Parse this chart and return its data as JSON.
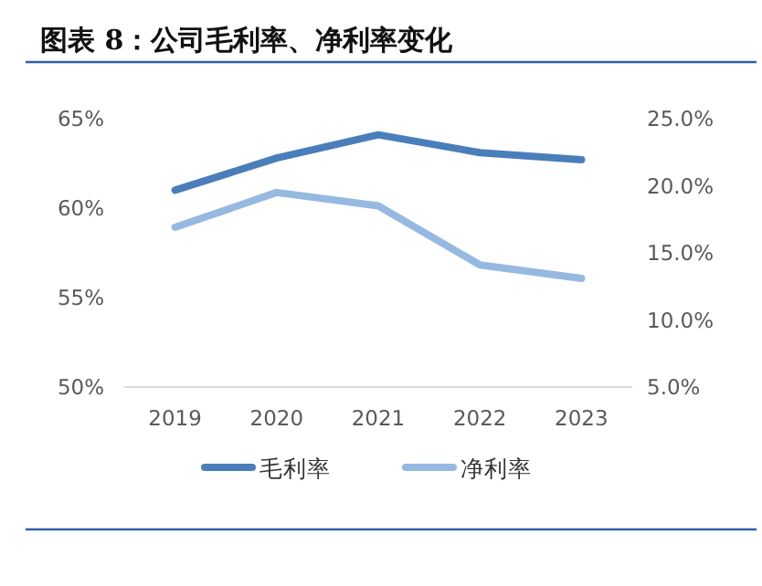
{
  "chart_data": {
    "type": "line",
    "title": "图表 8：公司毛利率、净利率变化",
    "categories": [
      "2019",
      "2020",
      "2021",
      "2022",
      "2023"
    ],
    "series": [
      {
        "name": "毛利率",
        "color": "#4a7ebb",
        "values": [
          61.0,
          62.8,
          64.1,
          63.1,
          62.7
        ]
      },
      {
        "name": "净利率",
        "color": "#95b9e1",
        "axis": "y2",
        "values": [
          16.9,
          19.5,
          18.5,
          14.1,
          13.1
        ]
      }
    ],
    "ylim": [
      50,
      65
    ],
    "yticks": [
      {
        "value": 50,
        "label": "50%"
      },
      {
        "value": 55,
        "label": "55%"
      },
      {
        "value": 60,
        "label": "60%"
      },
      {
        "value": 65,
        "label": "65%"
      }
    ],
    "y2lim": [
      5,
      25
    ],
    "y2ticks": [
      {
        "value": 5,
        "label": "5.0%"
      },
      {
        "value": 10,
        "label": "10.0%"
      },
      {
        "value": 15,
        "label": "15.0%"
      },
      {
        "value": 20,
        "label": "20.0%"
      },
      {
        "value": 25,
        "label": "25.0%"
      }
    ],
    "grid": false,
    "legend": "bottom",
    "marker": "none",
    "line_style": "solid"
  }
}
